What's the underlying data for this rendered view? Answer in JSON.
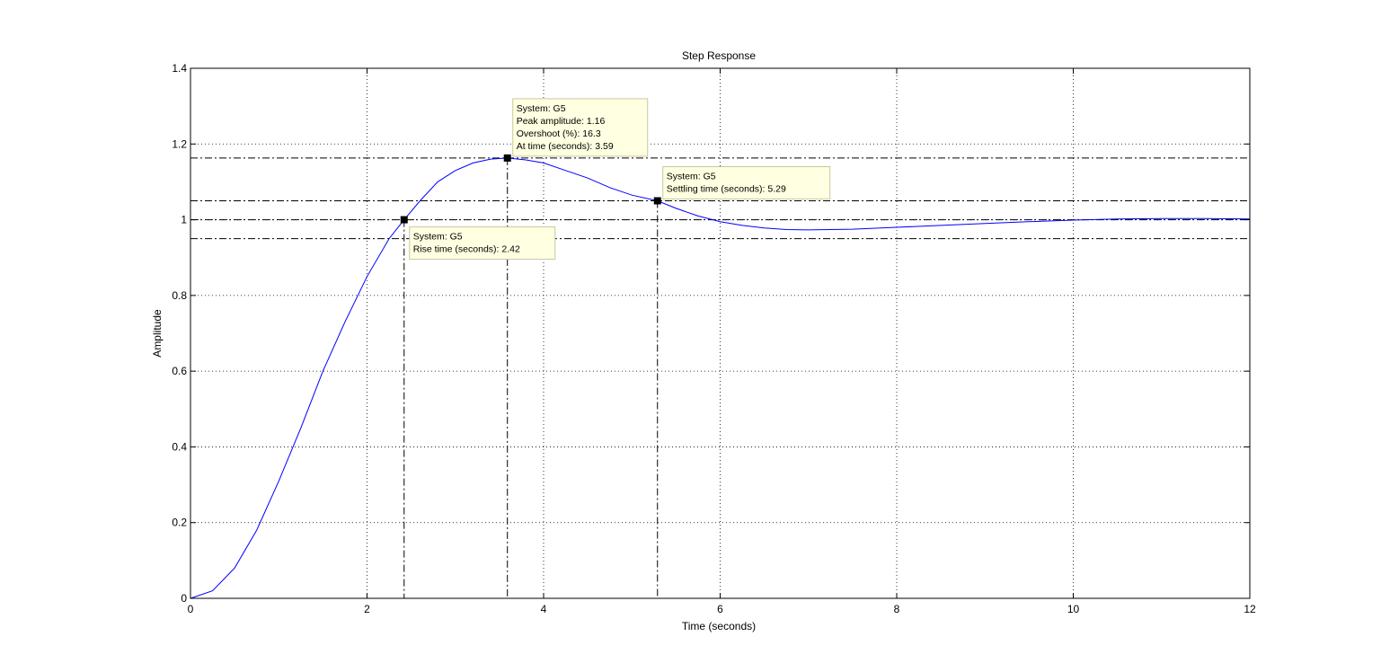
{
  "chart_data": {
    "type": "line",
    "title": "Step Response",
    "xlabel": "Time (seconds)",
    "ylabel": "Amplitude",
    "xlim": [
      0,
      12
    ],
    "ylim": [
      0,
      1.4
    ],
    "xticks": [
      0,
      2,
      4,
      6,
      8,
      10,
      12
    ],
    "xtick_labels": [
      "0",
      "2",
      "4",
      "6",
      "8",
      "10",
      "12"
    ],
    "yticks": [
      0,
      0.2,
      0.4,
      0.6,
      0.8,
      1.0,
      1.2,
      1.4
    ],
    "ytick_labels": [
      "0",
      "0.2",
      "0.4",
      "0.6",
      "0.8",
      "1",
      "1.2",
      "1.4"
    ],
    "grid": true,
    "series": [
      {
        "color": "#0000ff",
        "x": [
          0,
          0.25,
          0.5,
          0.75,
          1.0,
          1.25,
          1.5,
          1.75,
          2.0,
          2.25,
          2.42,
          2.6,
          2.8,
          3.0,
          3.2,
          3.4,
          3.59,
          3.8,
          4.0,
          4.25,
          4.5,
          4.75,
          5.0,
          5.29,
          5.5,
          5.75,
          6.0,
          6.25,
          6.5,
          6.75,
          7.0,
          7.5,
          8.0,
          8.5,
          9.0,
          9.5,
          10.0,
          10.5,
          11.0,
          11.5,
          12.0
        ],
        "y": [
          0,
          0.02,
          0.08,
          0.18,
          0.31,
          0.45,
          0.6,
          0.73,
          0.85,
          0.95,
          1.0,
          1.05,
          1.1,
          1.13,
          1.15,
          1.16,
          1.163,
          1.158,
          1.15,
          1.13,
          1.11,
          1.085,
          1.065,
          1.05,
          1.03,
          1.01,
          0.995,
          0.985,
          0.978,
          0.974,
          0.973,
          0.975,
          0.98,
          0.985,
          0.99,
          0.995,
          0.999,
          1.002,
          1.003,
          1.003,
          1.002
        ]
      }
    ],
    "reference_lines": {
      "horizontal": [
        1.163,
        1.05,
        1.0,
        0.95
      ],
      "vertical": [
        2.42,
        3.59,
        5.29
      ]
    },
    "markers": [
      {
        "x": 2.42,
        "y": 1.0
      },
      {
        "x": 3.59,
        "y": 1.163
      },
      {
        "x": 5.29,
        "y": 1.05
      }
    ],
    "annotations": [
      {
        "anchor_x": 2.42,
        "anchor_y": 1.0,
        "placement": "below-right",
        "lines": [
          "System: G5",
          "Rise time (seconds): 2.42"
        ]
      },
      {
        "anchor_x": 3.59,
        "anchor_y": 1.163,
        "placement": "above-right",
        "lines": [
          "System: G5",
          "Peak amplitude: 1.16",
          "Overshoot (%): 16.3",
          "At time (seconds): 3.59"
        ]
      },
      {
        "anchor_x": 5.29,
        "anchor_y": 1.05,
        "placement": "above-right",
        "lines": [
          "System: G5",
          "Settling time (seconds): 5.29"
        ]
      }
    ]
  }
}
